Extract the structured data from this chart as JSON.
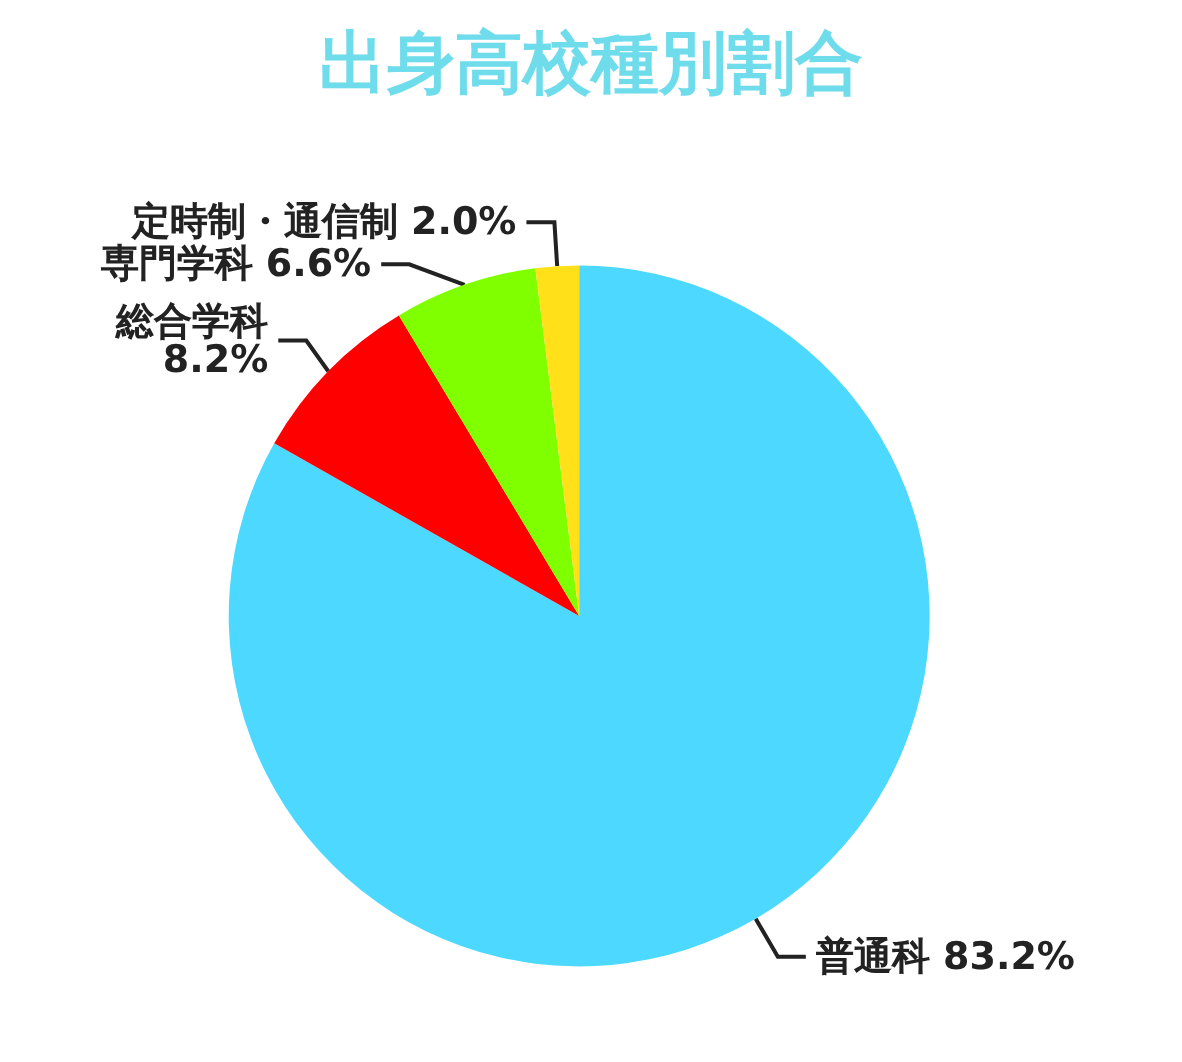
{
  "chart_data": {
    "type": "pie",
    "title": "出身高校種別割合",
    "categories": [
      "普通科",
      "総合学科",
      "専門学科",
      "定時制・通信制"
    ],
    "values": [
      83.2,
      8.2,
      6.6,
      2.0
    ],
    "value_labels": [
      "83.2%",
      "8.2%",
      "6.6%",
      "2.0%"
    ],
    "colors": [
      "#4dd9ff",
      "#ff0000",
      "#80ff00",
      "#ffe019"
    ]
  }
}
